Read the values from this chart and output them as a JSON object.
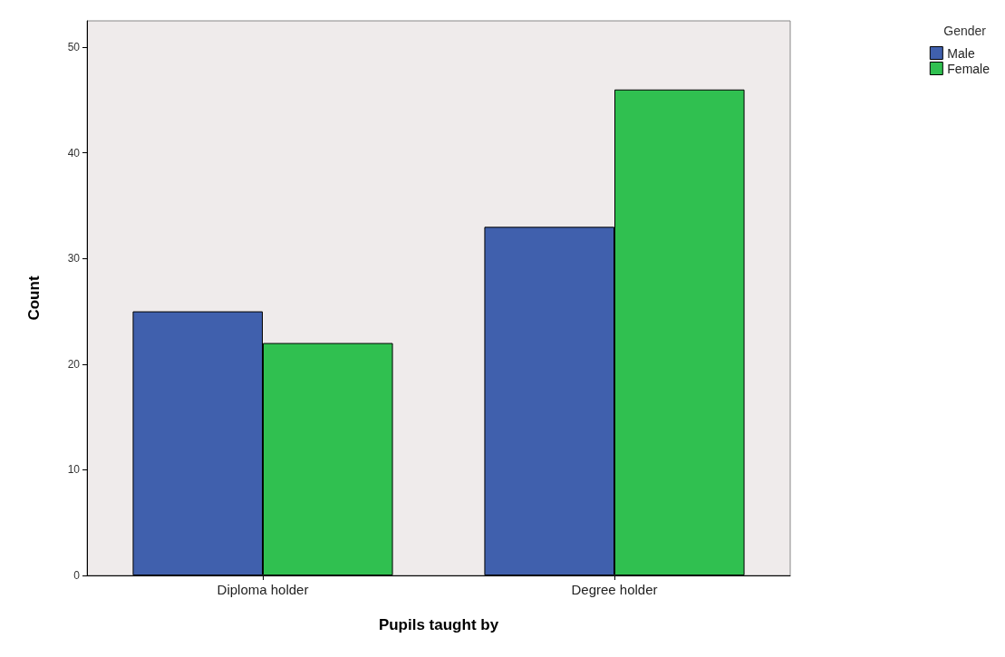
{
  "chart_data": {
    "type": "bar",
    "xlabel": "Pupils taught by",
    "ylabel": "Count",
    "legend_title": "Gender",
    "categories": [
      "Diploma holder",
      "Degree holder"
    ],
    "series": [
      {
        "name": "Male",
        "color": "#4060ad",
        "values": [
          25,
          33
        ]
      },
      {
        "name": "Female",
        "color": "#30c050",
        "values": [
          22,
          46
        ]
      }
    ],
    "ylim": [
      0,
      52.5
    ],
    "yticks": [
      0,
      10,
      20,
      30,
      40,
      50
    ],
    "grid": false,
    "legend": "top right"
  }
}
